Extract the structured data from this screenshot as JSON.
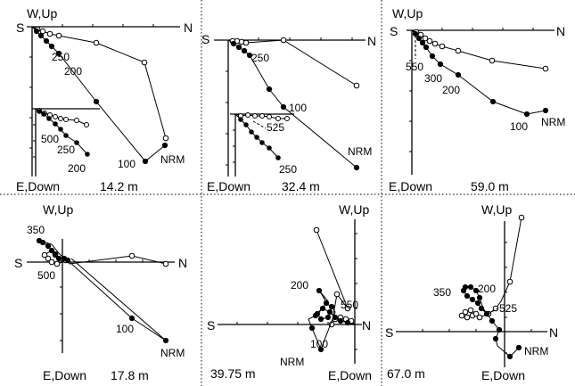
{
  "figure": {
    "panels": [
      {
        "id": "p1",
        "labels": {
          "west_up": "W,Up",
          "south": "S",
          "north": "N",
          "east_down": "E,Down",
          "depth": "14.2 m"
        },
        "step_labels": [
          "250",
          "200",
          "100",
          "NRM"
        ],
        "inset_step_labels": [
          "500",
          "250",
          "200"
        ]
      },
      {
        "id": "p2",
        "labels": {
          "west_up": "",
          "south": "S",
          "north": "N",
          "east_down": "E,Down",
          "depth": "32.4 m"
        },
        "step_labels": [
          "250",
          "100",
          "NRM"
        ],
        "inset_step_labels": [
          "525",
          "250"
        ]
      },
      {
        "id": "p3",
        "labels": {
          "west_up": "W,Up",
          "south": "S",
          "north": "N",
          "east_down": "E,Down",
          "depth": "59.0 m"
        },
        "step_labels": [
          "550",
          "300",
          "200",
          "100",
          "NRM"
        ]
      },
      {
        "id": "p4",
        "labels": {
          "west_up": "W,Up",
          "south": "S",
          "north": "N",
          "east_down": "E,Down",
          "depth": "17.8 m"
        },
        "step_labels": [
          "350",
          "500",
          "100",
          "NRM"
        ]
      },
      {
        "id": "p5",
        "labels": {
          "west_up": "W,Up",
          "south": "S",
          "north": "N",
          "east_down": "E,Down",
          "depth": "39.75 m"
        },
        "step_labels": [
          "200",
          "550",
          "100",
          "NRM"
        ]
      },
      {
        "id": "p6",
        "labels": {
          "west_up": "W,Up",
          "south": "S",
          "north": "N",
          "east_down": "E,Down",
          "depth": "67.0 m"
        },
        "step_labels": [
          "350",
          "200",
          "525",
          "NRM"
        ]
      }
    ]
  }
}
